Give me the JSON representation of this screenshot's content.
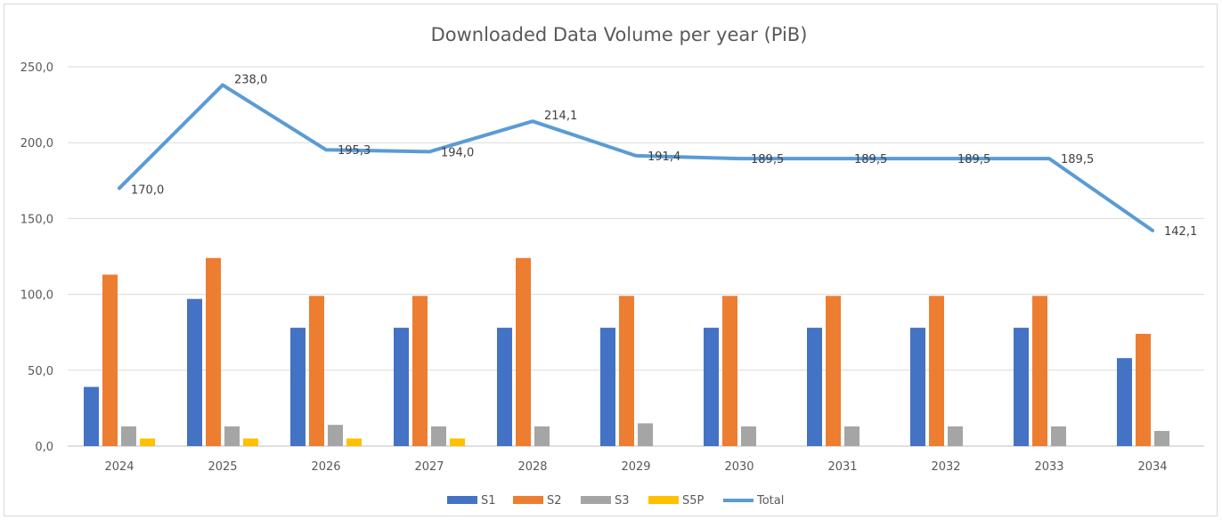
{
  "chart_data": {
    "type": "bar+line",
    "title": "Downloaded Data Volume per year (PiB)",
    "categories": [
      "2024",
      "2025",
      "2026",
      "2027",
      "2028",
      "2029",
      "2030",
      "2031",
      "2032",
      "2033",
      "2034"
    ],
    "y_ticks": [
      "0,0",
      "50,0",
      "100,0",
      "150,0",
      "200,0",
      "250,0"
    ],
    "ylim": [
      0,
      250
    ],
    "grid": true,
    "legend_position": "bottom",
    "series": [
      {
        "name": "S1",
        "type": "bar",
        "color": "#4472c4",
        "values": [
          39,
          97,
          78,
          78,
          78,
          78,
          78,
          78,
          78,
          78,
          58
        ]
      },
      {
        "name": "S2",
        "type": "bar",
        "color": "#ed7d31",
        "values": [
          113,
          124,
          99,
          99,
          124,
          99,
          99,
          99,
          99,
          99,
          74
        ]
      },
      {
        "name": "S3",
        "type": "bar",
        "color": "#a5a5a5",
        "values": [
          13,
          13,
          14,
          13,
          13,
          15,
          13,
          13,
          13,
          13,
          10
        ]
      },
      {
        "name": "S5P",
        "type": "bar",
        "color": "#ffc000",
        "values": [
          5,
          5,
          5,
          5,
          0,
          0,
          0,
          0,
          0,
          0,
          0
        ]
      },
      {
        "name": "Total",
        "type": "line",
        "color": "#5b9bd5",
        "values": [
          170.0,
          238.0,
          195.3,
          194.0,
          214.1,
          191.4,
          189.5,
          189.5,
          189.5,
          189.5,
          142.1
        ],
        "labels": [
          "170,0",
          "238,0",
          "195,3",
          "194,0",
          "214,1",
          "191,4",
          "189,5",
          "189,5",
          "189,5",
          "189,5",
          "142,1"
        ]
      }
    ]
  }
}
